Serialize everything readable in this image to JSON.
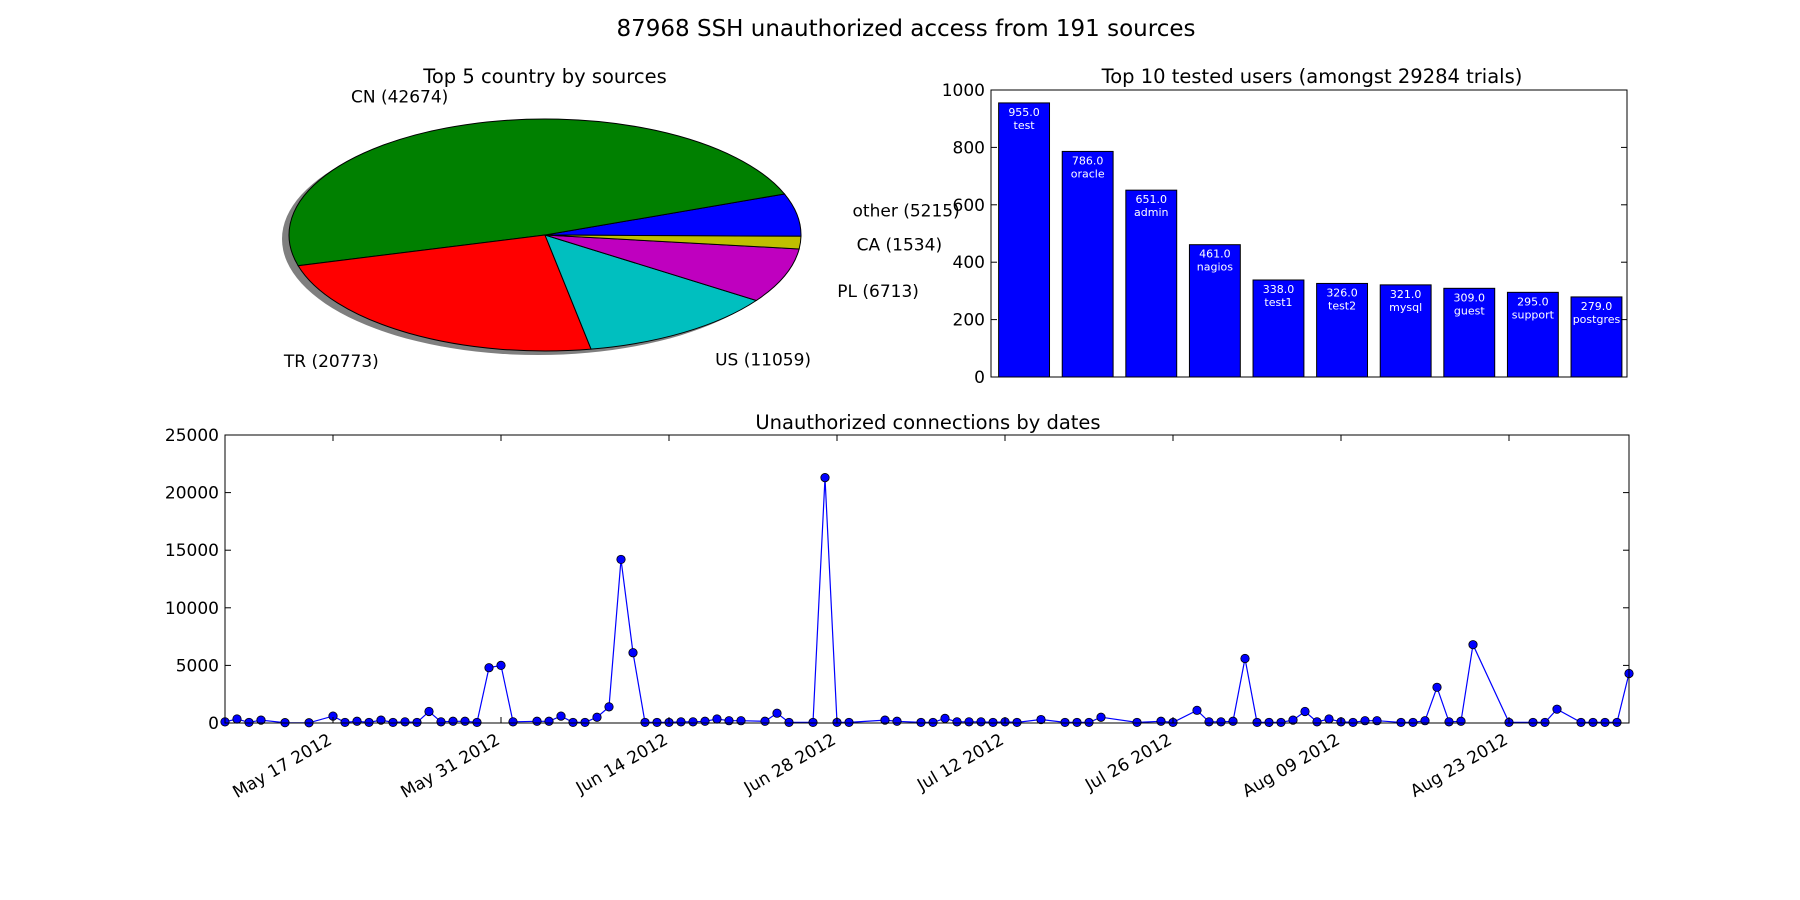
{
  "figure": {
    "title": "87968 SSH unauthorized access from 191 sources"
  },
  "chart_data": [
    {
      "type": "pie",
      "title": "Top 5 country by sources",
      "shadow": true,
      "slices": [
        {
          "label": "CN (42674)",
          "value": 42674,
          "color": "#008000"
        },
        {
          "label": "TR (20773)",
          "value": 20773,
          "color": "#ff0000"
        },
        {
          "label": "US (11059)",
          "value": 11059,
          "color": "#00bfbf"
        },
        {
          "label": "PL (6713)",
          "value": 6713,
          "color": "#bf00bf"
        },
        {
          "label": "CA (1534)",
          "value": 1534,
          "color": "#bfbf00"
        },
        {
          "label": "other (5215)",
          "value": 5215,
          "color": "#0000ff"
        }
      ]
    },
    {
      "type": "bar",
      "title": "Top 10 tested users (amongst 29284 trials)",
      "color": "#0000ff",
      "categories": [
        "test",
        "oracle",
        "admin",
        "nagios",
        "test1",
        "test2",
        "mysql",
        "guest",
        "support",
        "postgres"
      ],
      "values": [
        955.0,
        786.0,
        651.0,
        461.0,
        338.0,
        326.0,
        321.0,
        309.0,
        295.0,
        279.0
      ],
      "value_labels": [
        "955.0",
        "786.0",
        "651.0",
        "461.0",
        "338.0",
        "326.0",
        "321.0",
        "309.0",
        "295.0",
        "279.0"
      ],
      "ylim": [
        0,
        1000
      ],
      "yticks": [
        0,
        200,
        400,
        600,
        800,
        1000
      ],
      "grid": false
    },
    {
      "type": "line",
      "title": "Unauthorized connections by dates",
      "color": "#0000ff",
      "marker": "circle",
      "xlim": [
        "2012-05-08",
        "2012-09-02"
      ],
      "ylim": [
        0,
        25000
      ],
      "yticks": [
        0,
        5000,
        10000,
        15000,
        20000,
        25000
      ],
      "xticks": [
        {
          "date": "2012-05-17",
          "label": "May 17 2012"
        },
        {
          "date": "2012-05-31",
          "label": "May 31 2012"
        },
        {
          "date": "2012-06-14",
          "label": "Jun 14 2012"
        },
        {
          "date": "2012-06-28",
          "label": "Jun 28 2012"
        },
        {
          "date": "2012-07-12",
          "label": "Jul 12 2012"
        },
        {
          "date": "2012-07-26",
          "label": "Jul 26 2012"
        },
        {
          "date": "2012-08-09",
          "label": "Aug 09 2012"
        },
        {
          "date": "2012-08-23",
          "label": "Aug 23 2012"
        }
      ],
      "points": [
        [
          "2012-05-08",
          100
        ],
        [
          "2012-05-09",
          350
        ],
        [
          "2012-05-10",
          50
        ],
        [
          "2012-05-11",
          250
        ],
        [
          "2012-05-13",
          30
        ],
        [
          "2012-05-15",
          20
        ],
        [
          "2012-05-17",
          600
        ],
        [
          "2012-05-18",
          50
        ],
        [
          "2012-05-19",
          150
        ],
        [
          "2012-05-20",
          50
        ],
        [
          "2012-05-21",
          250
        ],
        [
          "2012-05-22",
          50
        ],
        [
          "2012-05-23",
          100
        ],
        [
          "2012-05-24",
          50
        ],
        [
          "2012-05-25",
          1000
        ],
        [
          "2012-05-26",
          100
        ],
        [
          "2012-05-27",
          150
        ],
        [
          "2012-05-28",
          150
        ],
        [
          "2012-05-29",
          50
        ],
        [
          "2012-05-30",
          4800
        ],
        [
          "2012-05-31",
          5000
        ],
        [
          "2012-06-01",
          100
        ],
        [
          "2012-06-03",
          150
        ],
        [
          "2012-06-04",
          150
        ],
        [
          "2012-06-05",
          600
        ],
        [
          "2012-06-06",
          50
        ],
        [
          "2012-06-07",
          50
        ],
        [
          "2012-06-08",
          500
        ],
        [
          "2012-06-09",
          1400
        ],
        [
          "2012-06-10",
          14200
        ],
        [
          "2012-06-11",
          6100
        ],
        [
          "2012-06-12",
          50
        ],
        [
          "2012-06-13",
          50
        ],
        [
          "2012-06-14",
          50
        ],
        [
          "2012-06-15",
          100
        ],
        [
          "2012-06-16",
          100
        ],
        [
          "2012-06-17",
          150
        ],
        [
          "2012-06-18",
          350
        ],
        [
          "2012-06-19",
          200
        ],
        [
          "2012-06-20",
          200
        ],
        [
          "2012-06-22",
          150
        ],
        [
          "2012-06-23",
          850
        ],
        [
          "2012-06-24",
          50
        ],
        [
          "2012-06-26",
          50
        ],
        [
          "2012-06-27",
          21300
        ],
        [
          "2012-06-28",
          50
        ],
        [
          "2012-06-29",
          50
        ],
        [
          "2012-07-02",
          250
        ],
        [
          "2012-07-03",
          150
        ],
        [
          "2012-07-05",
          50
        ],
        [
          "2012-07-06",
          50
        ],
        [
          "2012-07-07",
          400
        ],
        [
          "2012-07-08",
          100
        ],
        [
          "2012-07-09",
          100
        ],
        [
          "2012-07-10",
          100
        ],
        [
          "2012-07-11",
          50
        ],
        [
          "2012-07-12",
          100
        ],
        [
          "2012-07-13",
          50
        ],
        [
          "2012-07-15",
          300
        ],
        [
          "2012-07-17",
          50
        ],
        [
          "2012-07-18",
          50
        ],
        [
          "2012-07-19",
          50
        ],
        [
          "2012-07-20",
          500
        ],
        [
          "2012-07-23",
          50
        ],
        [
          "2012-07-25",
          150
        ],
        [
          "2012-07-26",
          50
        ],
        [
          "2012-07-28",
          1100
        ],
        [
          "2012-07-29",
          100
        ],
        [
          "2012-07-30",
          100
        ],
        [
          "2012-07-31",
          150
        ],
        [
          "2012-08-01",
          5600
        ],
        [
          "2012-08-02",
          50
        ],
        [
          "2012-08-03",
          50
        ],
        [
          "2012-08-04",
          50
        ],
        [
          "2012-08-05",
          250
        ],
        [
          "2012-08-06",
          1000
        ],
        [
          "2012-08-07",
          100
        ],
        [
          "2012-08-08",
          350
        ],
        [
          "2012-08-09",
          100
        ],
        [
          "2012-08-10",
          50
        ],
        [
          "2012-08-11",
          200
        ],
        [
          "2012-08-12",
          200
        ],
        [
          "2012-08-14",
          50
        ],
        [
          "2012-08-15",
          50
        ],
        [
          "2012-08-16",
          200
        ],
        [
          "2012-08-17",
          3100
        ],
        [
          "2012-08-18",
          100
        ],
        [
          "2012-08-19",
          150
        ],
        [
          "2012-08-20",
          6800
        ],
        [
          "2012-08-23",
          50
        ],
        [
          "2012-08-25",
          50
        ],
        [
          "2012-08-26",
          50
        ],
        [
          "2012-08-27",
          1200
        ],
        [
          "2012-08-29",
          50
        ],
        [
          "2012-08-30",
          50
        ],
        [
          "2012-08-31",
          50
        ],
        [
          "2012-09-01",
          50
        ],
        [
          "2012-09-02",
          4300
        ]
      ],
      "grid": false
    }
  ]
}
